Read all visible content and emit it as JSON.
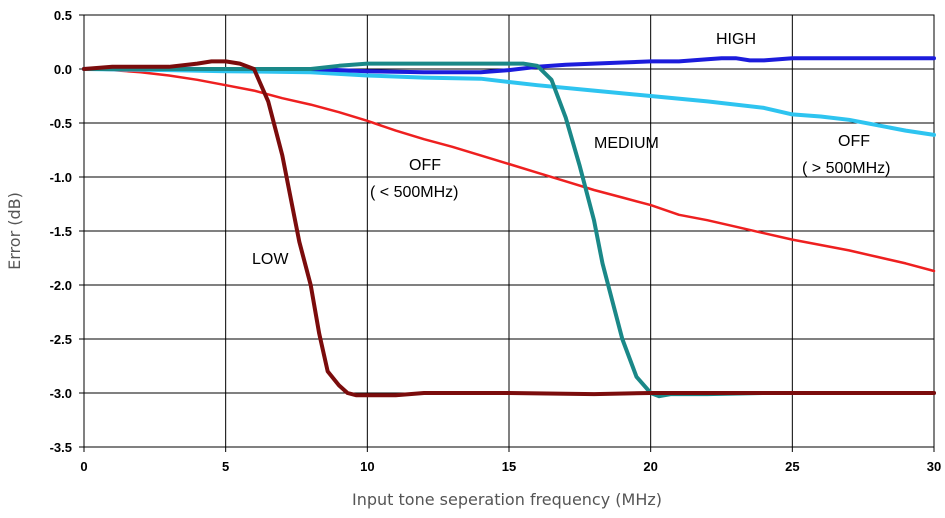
{
  "chart_data": {
    "type": "line",
    "xlabel": "Input tone seperation frequency (MHz)",
    "ylabel": "Error (dB)",
    "xlim": [
      0,
      30
    ],
    "ylim": [
      -3.5,
      0.5
    ],
    "x_ticks": [
      "0",
      "5",
      "10",
      "15",
      "20",
      "25",
      "30"
    ],
    "y_ticks": [
      "0.5",
      "0.0",
      "-0.5",
      "-1.0",
      "-1.5",
      "-2.0",
      "-2.5",
      "-3.0",
      "-3.5"
    ],
    "grid": true,
    "series": [
      {
        "name": "LOW",
        "color": "#7b0c0c",
        "x": [
          0,
          1,
          2,
          3,
          4,
          4.5,
          5,
          5.5,
          6,
          6.5,
          7,
          7.3,
          7.6,
          8,
          8.3,
          8.6,
          9,
          9.3,
          9.6,
          10,
          11,
          12,
          15,
          18,
          20,
          25,
          30
        ],
        "y": [
          0,
          0.02,
          0.02,
          0.02,
          0.05,
          0.07,
          0.07,
          0.05,
          0.0,
          -0.3,
          -0.8,
          -1.2,
          -1.6,
          -2.0,
          -2.45,
          -2.8,
          -2.93,
          -3.0,
          -3.02,
          -3.02,
          -3.02,
          -3.0,
          -3.0,
          -3.01,
          -3.0,
          -3.0,
          -3.0
        ]
      },
      {
        "name": "MEDIUM",
        "color": "#1a8888",
        "x": [
          0,
          2,
          5,
          8,
          9,
          10,
          12,
          14,
          15.5,
          16,
          16.5,
          17,
          17.5,
          18,
          18.3,
          18.7,
          19,
          19.5,
          20,
          20.3,
          20.7,
          22,
          24,
          26,
          28,
          30
        ],
        "y": [
          0,
          0.0,
          0.0,
          0.0,
          0.03,
          0.05,
          0.05,
          0.05,
          0.05,
          0.03,
          -0.1,
          -0.45,
          -0.9,
          -1.4,
          -1.8,
          -2.2,
          -2.5,
          -2.85,
          -3.0,
          -3.03,
          -3.01,
          -3.01,
          -3.0,
          -3.0,
          -3.0,
          -3.0
        ]
      },
      {
        "name": "HIGH",
        "color": "#1c1cdc",
        "x": [
          0,
          2,
          4,
          6,
          8,
          10,
          12,
          14,
          15,
          16,
          17,
          18,
          19,
          20,
          21,
          22,
          22.5,
          23,
          23.5,
          24,
          25,
          26,
          27,
          28,
          30
        ],
        "y": [
          0,
          0.01,
          0.0,
          0.0,
          0.0,
          -0.02,
          -0.03,
          -0.03,
          -0.01,
          0.02,
          0.04,
          0.05,
          0.06,
          0.07,
          0.07,
          0.09,
          0.1,
          0.1,
          0.08,
          0.08,
          0.1,
          0.1,
          0.1,
          0.1,
          0.1
        ]
      },
      {
        "name": "OFF ( > 500MHz)",
        "color": "#2ec4f0",
        "x": [
          0,
          3,
          5,
          8,
          10,
          12,
          14,
          15,
          16,
          18,
          20,
          22,
          24,
          25,
          26,
          27,
          28,
          29,
          30
        ],
        "y": [
          0,
          -0.01,
          -0.02,
          -0.03,
          -0.06,
          -0.08,
          -0.09,
          -0.12,
          -0.15,
          -0.2,
          -0.25,
          -0.3,
          -0.36,
          -0.42,
          -0.44,
          -0.47,
          -0.52,
          -0.57,
          -0.61
        ]
      },
      {
        "name": "OFF ( < 500MHz)",
        "color": "#ee2020",
        "x": [
          0,
          1,
          2,
          3,
          4,
          5,
          6,
          7,
          8,
          9,
          10,
          11,
          12,
          13,
          14,
          15,
          16,
          17,
          18,
          19,
          20,
          21,
          22,
          23,
          24,
          25,
          26,
          27,
          28,
          29,
          30
        ],
        "y": [
          0,
          -0.01,
          -0.03,
          -0.06,
          -0.1,
          -0.15,
          -0.2,
          -0.27,
          -0.33,
          -0.4,
          -0.48,
          -0.57,
          -0.65,
          -0.72,
          -0.8,
          -0.88,
          -0.96,
          -1.04,
          -1.12,
          -1.19,
          -1.26,
          -1.35,
          -1.4,
          -1.46,
          -1.52,
          -1.58,
          -1.63,
          -1.68,
          -1.74,
          -1.8,
          -1.87
        ]
      }
    ],
    "annotations": {
      "high": "HIGH",
      "medium": "MEDIUM",
      "low": "LOW",
      "off_lt_line1": "OFF",
      "off_lt_line2": "( < 500MHz)",
      "off_gt_line1": "OFF",
      "off_gt_line2": "( > 500MHz)"
    }
  }
}
